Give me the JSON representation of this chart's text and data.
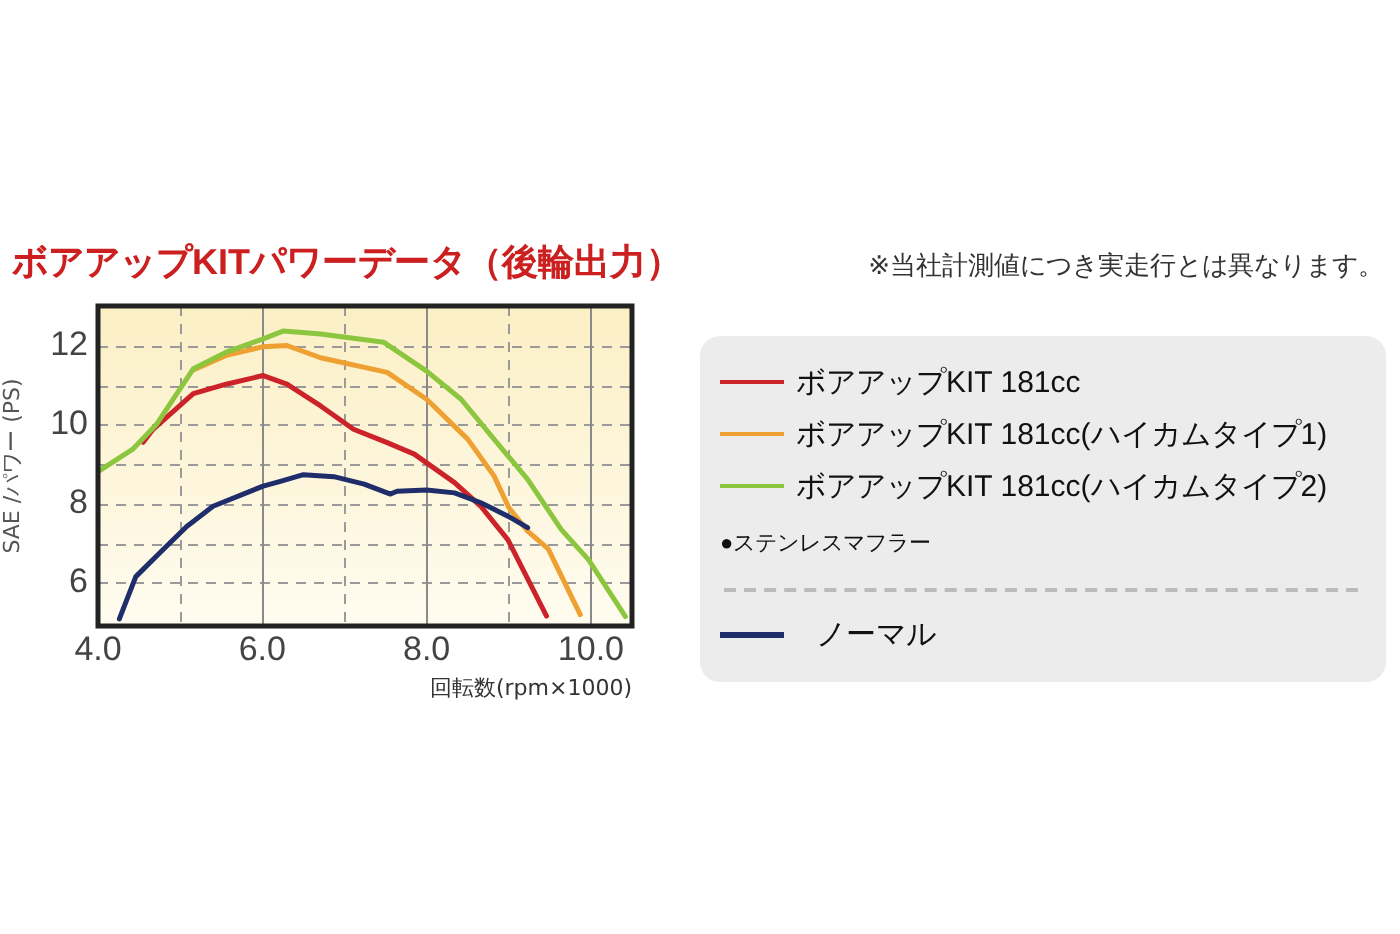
{
  "chart_data": {
    "type": "line",
    "title": "ボアアップKITパワーデータ（後輪出力）",
    "xlabel": "回転数(rpm×1000)",
    "ylabel": "SAE /パワー (PS)",
    "annotations": [
      "※当社計測値につき実走行とは異なります。",
      "●ステンレスマフラー"
    ],
    "series": [
      {
        "name": "ボアアップKIT 181cc",
        "color": "#cc2229",
        "x": [
          4.55,
          4.67,
          5.16,
          5.56,
          6.01,
          6.3,
          6.71,
          7.11,
          7.52,
          7.85,
          8.34,
          8.66,
          8.99,
          9.46
        ],
        "values": [
          9.55,
          9.88,
          10.78,
          11.02,
          11.24,
          11.02,
          10.47,
          9.88,
          9.54,
          9.25,
          8.53,
          7.93,
          7.08,
          5.15
        ]
      },
      {
        "name": "ボアアップKIT 181cc(ハイカムタイプ1)",
        "color": "#eea032",
        "x": [
          5.16,
          5.56,
          6.01,
          6.3,
          6.71,
          7.52,
          8.0,
          8.5,
          8.82,
          9.0,
          9.23,
          9.48,
          9.87
        ],
        "values": [
          11.38,
          11.75,
          11.97,
          12.0,
          11.69,
          11.32,
          10.64,
          9.63,
          8.7,
          7.9,
          7.3,
          6.85,
          5.19
        ]
      },
      {
        "name": "ボアアップKIT 181cc(ハイカムタイプ2)",
        "color": "#8cc63f",
        "x": [
          4.0,
          4.42,
          4.71,
          5.16,
          5.56,
          6.01,
          6.26,
          6.71,
          7.48,
          8.0,
          8.42,
          8.82,
          9.23,
          9.64,
          9.97,
          10.42
        ],
        "values": [
          8.81,
          9.37,
          10.0,
          11.41,
          11.83,
          12.17,
          12.37,
          12.29,
          12.08,
          11.35,
          10.64,
          9.63,
          8.61,
          7.34,
          6.58,
          5.14
        ]
      },
      {
        "name": "ノーマル",
        "color": "#1f2d6b",
        "x": [
          4.26,
          4.46,
          4.75,
          5.08,
          5.4,
          6.01,
          6.22,
          6.5,
          6.87,
          7.24,
          7.56,
          7.64,
          8.0,
          8.34,
          8.66,
          8.99,
          9.23
        ],
        "values": [
          5.08,
          6.15,
          6.75,
          7.42,
          7.93,
          8.44,
          8.56,
          8.73,
          8.68,
          8.49,
          8.24,
          8.31,
          8.34,
          8.27,
          8.02,
          7.68,
          7.39
        ]
      }
    ],
    "xlim": [
      4,
      10.5
    ],
    "xticks": [
      {
        "value": 4,
        "label": "4.0"
      },
      {
        "value": 5,
        "label": null
      },
      {
        "value": 6,
        "label": "6.0"
      },
      {
        "value": 7,
        "label": null
      },
      {
        "value": 8,
        "label": "8.0"
      },
      {
        "value": 9,
        "label": null
      },
      {
        "value": 10,
        "label": "10.0"
      }
    ],
    "ylim": [
      4.9,
      13
    ],
    "yticks": [
      6,
      {
        "value": 7,
        "label": null
      },
      8,
      {
        "value": 9,
        "label": null
      },
      10,
      {
        "value": 11,
        "label": null
      },
      12
    ],
    "grid": true,
    "legend": "right"
  }
}
